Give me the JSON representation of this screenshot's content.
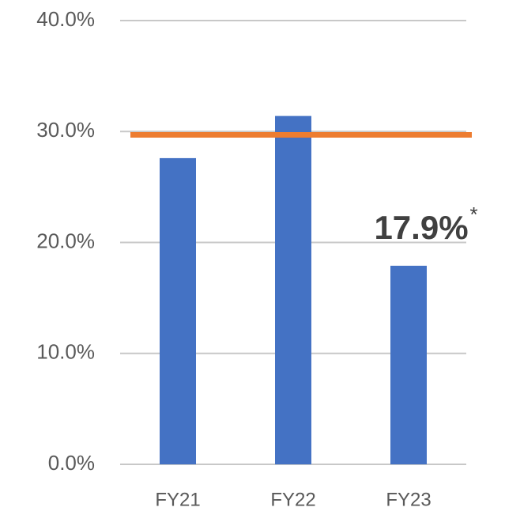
{
  "chart_data": {
    "type": "bar",
    "categories": [
      "FY21",
      "FY22",
      "FY23"
    ],
    "values": [
      27.6,
      31.4,
      17.9
    ],
    "value_labels": [
      null,
      null,
      "17.9%"
    ],
    "footnote_mark": "*",
    "color": "#4472c4",
    "reference_line": {
      "value": 29.7,
      "color": "#ed7d31"
    },
    "ylim": [
      0,
      40
    ],
    "yticks": [
      {
        "value": 0,
        "label": "0.0%"
      },
      {
        "value": 10,
        "label": "10.0%"
      },
      {
        "value": 20,
        "label": "20.0%"
      },
      {
        "value": 30,
        "label": "30.0%"
      },
      {
        "value": 40,
        "label": "40.0%"
      }
    ],
    "grid": true
  }
}
